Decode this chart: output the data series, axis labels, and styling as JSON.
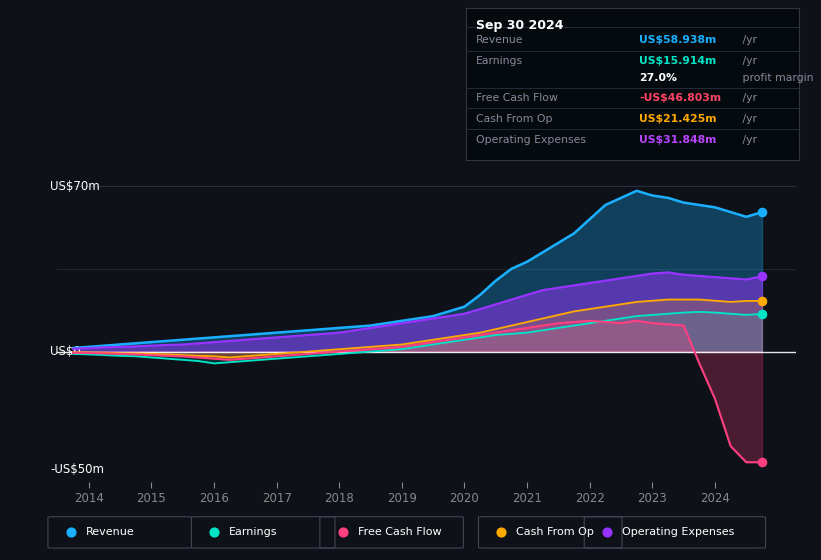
{
  "background_color": "#0e1117",
  "plot_bg_color": "#0e1117",
  "title_box": {
    "date": "Sep 30 2024",
    "rows": [
      {
        "label": "Revenue",
        "value": "US$58.938m",
        "unit": " /yr",
        "color": "#1ab0ff"
      },
      {
        "label": "Earnings",
        "value": "US$15.914m",
        "unit": " /yr",
        "color": "#00e5c8"
      },
      {
        "label": "",
        "value": "27.0%",
        "unit": " profit margin",
        "color": "#ffffff"
      },
      {
        "label": "Free Cash Flow",
        "value": "-US$46.803m",
        "unit": " /yr",
        "color": "#ff4466"
      },
      {
        "label": "Cash From Op",
        "value": "US$21.425m",
        "unit": " /yr",
        "color": "#ffaa00"
      },
      {
        "label": "Operating Expenses",
        "value": "US$31.848m",
        "unit": " /yr",
        "color": "#bb44ff"
      }
    ]
  },
  "ylabel_top": "US$70m",
  "ylabel_zero": "US$0",
  "ylabel_bottom": "-US$50m",
  "ylim": [
    -55,
    80
  ],
  "y_zero": 0,
  "xlim": [
    2013.5,
    2025.3
  ],
  "xticks": [
    2014,
    2015,
    2016,
    2017,
    2018,
    2019,
    2020,
    2021,
    2022,
    2023,
    2024
  ],
  "colors": {
    "revenue": "#1ab0ff",
    "earnings": "#00e5c8",
    "free_cash_flow": "#ff4080",
    "cash_from_op": "#ffaa00",
    "operating_expenses": "#9933ff"
  },
  "legend": [
    {
      "label": "Revenue",
      "color": "#1ab0ff"
    },
    {
      "label": "Earnings",
      "color": "#00e5c8"
    },
    {
      "label": "Free Cash Flow",
      "color": "#ff4080"
    },
    {
      "label": "Cash From Op",
      "color": "#ffaa00"
    },
    {
      "label": "Operating Expenses",
      "color": "#9933ff"
    }
  ],
  "series": {
    "years": [
      2013.75,
      2014.0,
      2014.25,
      2014.5,
      2014.75,
      2015.0,
      2015.25,
      2015.5,
      2015.75,
      2016.0,
      2016.25,
      2016.5,
      2016.75,
      2017.0,
      2017.25,
      2017.5,
      2017.75,
      2018.0,
      2018.25,
      2018.5,
      2018.75,
      2019.0,
      2019.25,
      2019.5,
      2019.75,
      2020.0,
      2020.25,
      2020.5,
      2020.75,
      2021.0,
      2021.25,
      2021.5,
      2021.75,
      2022.0,
      2022.25,
      2022.5,
      2022.75,
      2023.0,
      2023.25,
      2023.5,
      2023.75,
      2024.0,
      2024.25,
      2024.5,
      2024.75
    ],
    "revenue": [
      1.5,
      2.0,
      2.5,
      3.0,
      3.5,
      4.0,
      4.5,
      5.0,
      5.5,
      6.0,
      6.5,
      7.0,
      7.5,
      8.0,
      8.5,
      9.0,
      9.5,
      10.0,
      10.5,
      11.0,
      12.0,
      13.0,
      14.0,
      15.0,
      17.0,
      19.0,
      24.0,
      30.0,
      35.0,
      38.0,
      42.0,
      46.0,
      50.0,
      56.0,
      62.0,
      65.0,
      68.0,
      66.0,
      65.0,
      63.0,
      62.0,
      61.0,
      59.0,
      57.0,
      58.938
    ],
    "earnings": [
      -1.0,
      -1.2,
      -1.5,
      -1.8,
      -2.0,
      -2.5,
      -3.0,
      -3.5,
      -4.0,
      -5.0,
      -4.5,
      -4.0,
      -3.5,
      -3.0,
      -2.5,
      -2.0,
      -1.5,
      -1.0,
      -0.5,
      0.0,
      0.5,
      1.0,
      2.0,
      3.0,
      4.0,
      5.0,
      6.0,
      7.0,
      7.5,
      8.0,
      9.0,
      10.0,
      11.0,
      12.0,
      13.0,
      14.0,
      15.0,
      15.5,
      16.0,
      16.5,
      16.8,
      16.5,
      16.0,
      15.5,
      15.914
    ],
    "free_cash_flow": [
      -0.5,
      -0.6,
      -0.8,
      -1.0,
      -1.2,
      -1.5,
      -1.8,
      -2.0,
      -2.5,
      -3.0,
      -3.5,
      -3.0,
      -2.5,
      -2.0,
      -1.5,
      -1.0,
      -0.5,
      0.0,
      0.5,
      1.0,
      1.5,
      2.0,
      3.0,
      4.0,
      5.0,
      6.0,
      7.0,
      8.0,
      9.0,
      10.0,
      11.0,
      12.0,
      12.5,
      13.0,
      12.5,
      12.0,
      13.0,
      12.0,
      11.5,
      11.0,
      -5.0,
      -20.0,
      -40.0,
      -46.803,
      -46.803
    ],
    "cash_from_op": [
      -0.3,
      -0.4,
      -0.5,
      -0.7,
      -0.8,
      -1.0,
      -1.2,
      -1.5,
      -1.8,
      -2.0,
      -2.5,
      -2.0,
      -1.5,
      -1.0,
      -0.5,
      0.0,
      0.5,
      1.0,
      1.5,
      2.0,
      2.5,
      3.0,
      4.0,
      5.0,
      6.0,
      7.0,
      8.0,
      9.5,
      11.0,
      12.5,
      14.0,
      15.5,
      17.0,
      18.0,
      19.0,
      20.0,
      21.0,
      21.5,
      22.0,
      22.0,
      22.0,
      21.5,
      21.0,
      21.425,
      21.425
    ],
    "operating_expenses": [
      1.2,
      1.5,
      1.8,
      2.0,
      2.2,
      2.5,
      2.8,
      3.0,
      3.5,
      4.0,
      4.5,
      5.0,
      5.5,
      6.0,
      6.5,
      7.0,
      7.5,
      8.0,
      9.0,
      10.0,
      11.0,
      12.0,
      13.0,
      14.0,
      15.0,
      16.0,
      18.0,
      20.0,
      22.0,
      24.0,
      26.0,
      27.0,
      28.0,
      29.0,
      30.0,
      31.0,
      32.0,
      33.0,
      33.5,
      32.5,
      32.0,
      31.5,
      31.0,
      30.5,
      31.848
    ]
  }
}
